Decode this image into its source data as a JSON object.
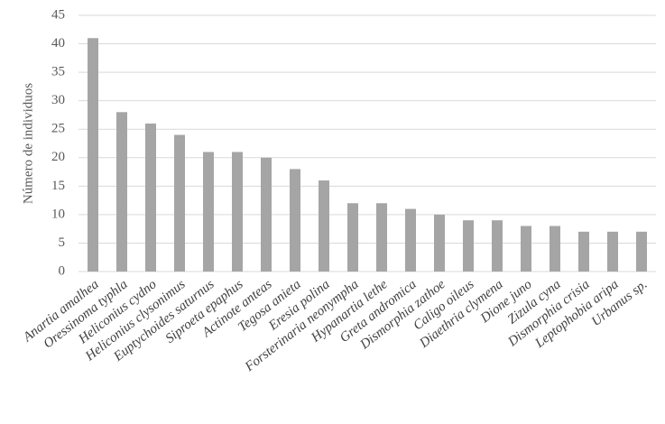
{
  "chart_data": {
    "type": "bar",
    "y_label": "Número de individuos",
    "categories": [
      "Anartia amalhea",
      "Oressinoma typhla",
      "Heliconius cydno",
      "Heliconius clysonimus",
      "Euptychoides saturnus",
      "Siproeta epaphus",
      "Actinote anteas",
      "Tegosa anieta",
      "Eresia polina",
      "Forsterinaria neonympha",
      "Hypanartia lethe",
      "Greta andromica",
      "Dismorphia zathoe",
      "Caligo oileus",
      "Diaethria clymena",
      "Dione juno",
      "Zizula cyna",
      "Dismorphia crisia",
      "Leptophobia aripa",
      "Urbanus sp."
    ],
    "values": [
      41,
      28,
      26,
      24,
      21,
      21,
      20,
      18,
      16,
      12,
      12,
      11,
      10,
      9,
      9,
      8,
      8,
      7,
      7,
      7
    ],
    "color": "#a5a5a5",
    "ylim": [
      0,
      45
    ],
    "yticks": [
      0,
      5,
      10,
      15,
      20,
      25,
      30,
      35,
      40,
      45
    ],
    "grid": true
  }
}
